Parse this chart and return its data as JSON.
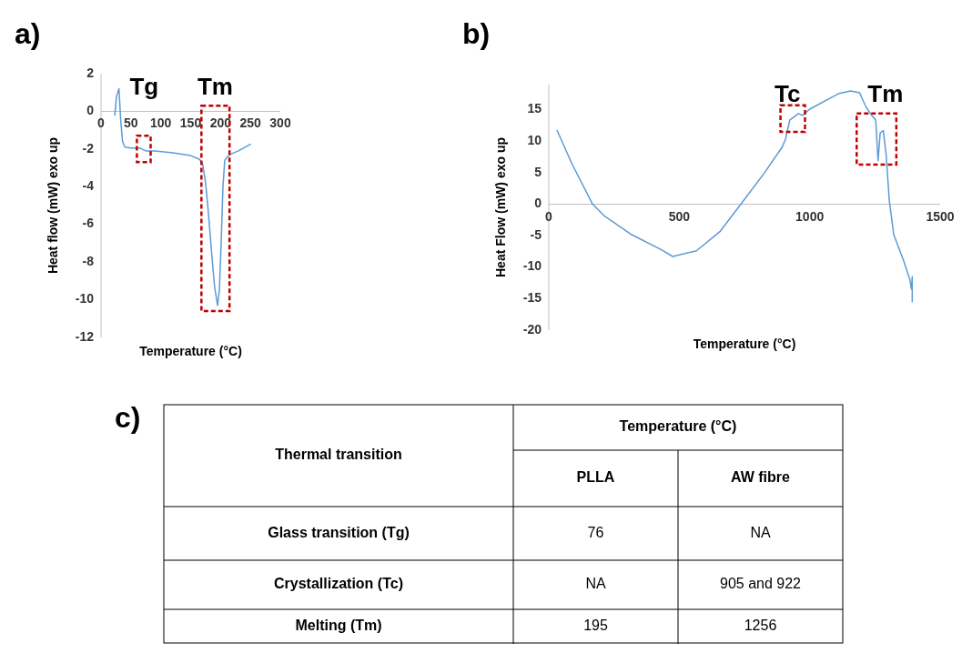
{
  "chart_data": [
    {
      "type": "line",
      "title": "a)",
      "xlabel": "Temperature (°C)",
      "ylabel": "Heat flow (mW) exo up",
      "xlim": [
        0,
        300
      ],
      "xticks": [
        0,
        50,
        100,
        150,
        200,
        250,
        300
      ],
      "ylim": [
        -12,
        2
      ],
      "yticks": [
        -12,
        -10,
        -8,
        -6,
        -4,
        -2,
        0,
        2
      ],
      "series": [
        {
          "color": "#5b9bd5",
          "x": [
            23,
            26,
            30,
            33,
            36,
            40,
            50,
            65,
            75,
            90,
            120,
            150,
            165,
            170,
            175,
            180,
            185,
            190,
            195,
            198,
            201,
            204,
            207,
            215,
            230,
            250
          ],
          "values": [
            -0.2,
            0.8,
            1.2,
            -0.5,
            -1.6,
            -1.9,
            -1.95,
            -1.95,
            -2.1,
            -2.1,
            -2.2,
            -2.35,
            -2.55,
            -2.8,
            -3.8,
            -5.5,
            -7.5,
            -9.3,
            -10.3,
            -9.5,
            -7,
            -4,
            -2.6,
            -2.3,
            -2.1,
            -1.75
          ]
        }
      ],
      "annotations": [
        "Tg",
        "Tm"
      ]
    },
    {
      "type": "line",
      "title": "b)",
      "xlabel": "Temperature (°C)",
      "ylabel": "Heat Flow (mW) exo up",
      "xlim": [
        0,
        1500
      ],
      "xticks": [
        0,
        500,
        1000,
        1500
      ],
      "ylim": [
        -20,
        19
      ],
      "yticks": [
        -20,
        -15,
        -10,
        -5,
        0,
        5,
        10,
        15
      ],
      "series": [
        {
          "color": "#5b9bd5",
          "x": [
            32,
            89,
            168,
            214,
            316,
            430,
            475,
            566,
            657,
            736,
            827,
            895,
            907,
            924,
            935,
            957,
            973,
            1000,
            1113,
            1157,
            1191,
            1214,
            1236,
            1253,
            1262,
            1270,
            1282,
            1293,
            1305,
            1322,
            1361,
            1384,
            1390,
            1393,
            1393
          ],
          "values": [
            11.7,
            6.4,
            0,
            -1.9,
            -4.8,
            -7.2,
            -8.3,
            -7.4,
            -4.3,
            0,
            5,
            9.1,
            10.3,
            13.4,
            13.7,
            14.4,
            14.1,
            15.1,
            17.6,
            18,
            17.7,
            15.6,
            14.2,
            13.4,
            6.9,
            11.3,
            11.7,
            7.9,
            0.6,
            -4.8,
            -9.1,
            -12,
            -13.5,
            -11.5,
            -15.5
          ]
        }
      ],
      "annotations": [
        "Tc",
        "Tm"
      ]
    },
    {
      "type": "other",
      "title": "c)",
      "annotations": [
        "Thermal transition",
        "Temperature (°C)",
        "PLLA",
        "AW fibre",
        "Glass transition (Tg)",
        "76",
        "NA",
        "Crystallization (Tc)",
        "NA",
        "905 and 922",
        "Melting (Tm)",
        "195",
        "1256"
      ]
    }
  ]
}
